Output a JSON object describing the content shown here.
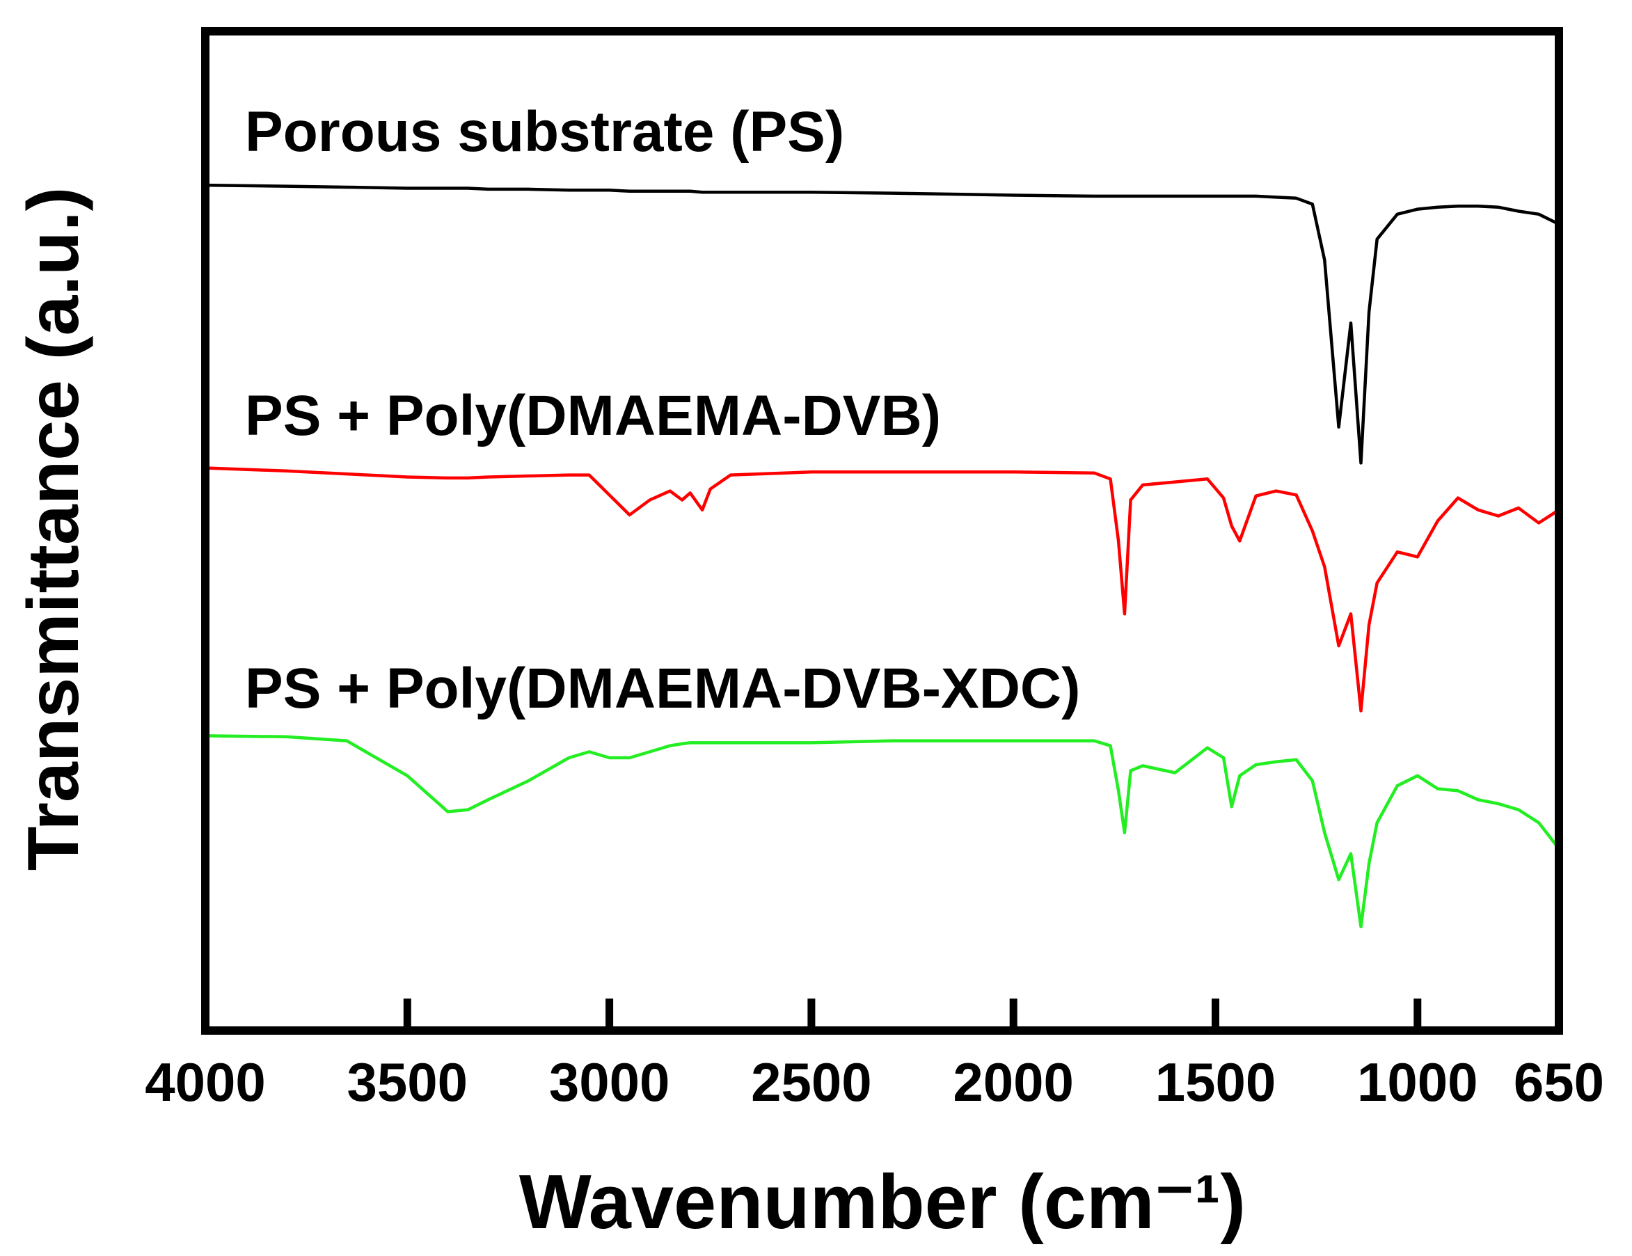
{
  "chart_data": {
    "type": "line",
    "xlabel": "Wavenumber (cm⁻¹)",
    "ylabel": "Transmittance (a.u.)",
    "xlim": [
      4000,
      650
    ],
    "ylim": [
      0,
      100
    ],
    "xticks": [
      4000,
      3500,
      3000,
      2500,
      2000,
      1500,
      1000,
      650
    ],
    "x": [
      4000,
      3800,
      3650,
      3500,
      3400,
      3350,
      3300,
      3200,
      3100,
      3050,
      3000,
      2950,
      2900,
      2850,
      2820,
      2800,
      2770,
      2750,
      2700,
      2500,
      2300,
      2000,
      1800,
      1760,
      1740,
      1725,
      1710,
      1680,
      1600,
      1520,
      1480,
      1460,
      1440,
      1400,
      1350,
      1300,
      1260,
      1230,
      1195,
      1165,
      1140,
      1120,
      1100,
      1050,
      1000,
      950,
      900,
      850,
      800,
      750,
      700,
      650
    ],
    "series": [
      {
        "name": "Porous substrate (PS)",
        "color": "#000000",
        "values": [
          84.6,
          84.5,
          84.4,
          84.3,
          84.3,
          84.3,
          84.2,
          84.2,
          84.1,
          84.1,
          84.1,
          84.0,
          84.0,
          84.0,
          84.0,
          84.0,
          83.9,
          83.9,
          83.9,
          83.9,
          83.8,
          83.6,
          83.5,
          83.5,
          83.5,
          83.5,
          83.5,
          83.5,
          83.5,
          83.5,
          83.5,
          83.5,
          83.5,
          83.5,
          83.4,
          83.3,
          82.7,
          77.1,
          60.4,
          70.8,
          56.8,
          71.9,
          79.2,
          81.7,
          82.2,
          82.4,
          82.5,
          82.5,
          82.4,
          82.0,
          81.7,
          80.7
        ]
      },
      {
        "name": "PS + Poly(DMAEMA-DVB)",
        "color": "#ff0000",
        "values": [
          56.3,
          56.0,
          55.7,
          55.4,
          55.3,
          55.3,
          55.4,
          55.5,
          55.6,
          55.6,
          53.6,
          51.6,
          53.1,
          54.0,
          53.1,
          53.8,
          52.1,
          54.2,
          55.6,
          55.9,
          55.9,
          55.9,
          55.8,
          55.2,
          49.0,
          41.7,
          53.1,
          54.6,
          54.9,
          55.2,
          53.3,
          50.5,
          49.0,
          53.5,
          54.0,
          53.6,
          50.0,
          46.4,
          38.5,
          41.7,
          32.0,
          40.6,
          44.8,
          47.9,
          47.4,
          51.0,
          53.3,
          52.1,
          51.5,
          52.3,
          50.8,
          52.1
        ]
      },
      {
        "name": "PS + Poly(DMAEMA-DVB-XDC)",
        "color": "#22ee22",
        "values": [
          29.5,
          29.4,
          29.0,
          25.5,
          21.9,
          22.1,
          23.1,
          25.0,
          27.3,
          27.9,
          27.3,
          27.3,
          27.9,
          28.5,
          28.7,
          28.8,
          28.8,
          28.8,
          28.8,
          28.8,
          29.0,
          29.0,
          29.0,
          28.5,
          24.0,
          19.8,
          26.0,
          26.5,
          25.8,
          28.3,
          27.3,
          22.4,
          25.5,
          26.6,
          26.9,
          27.1,
          25.0,
          19.8,
          15.1,
          17.7,
          10.4,
          16.7,
          20.8,
          24.5,
          25.5,
          24.2,
          24.0,
          23.1,
          22.7,
          22.1,
          20.8,
          18.2
        ]
      }
    ]
  }
}
